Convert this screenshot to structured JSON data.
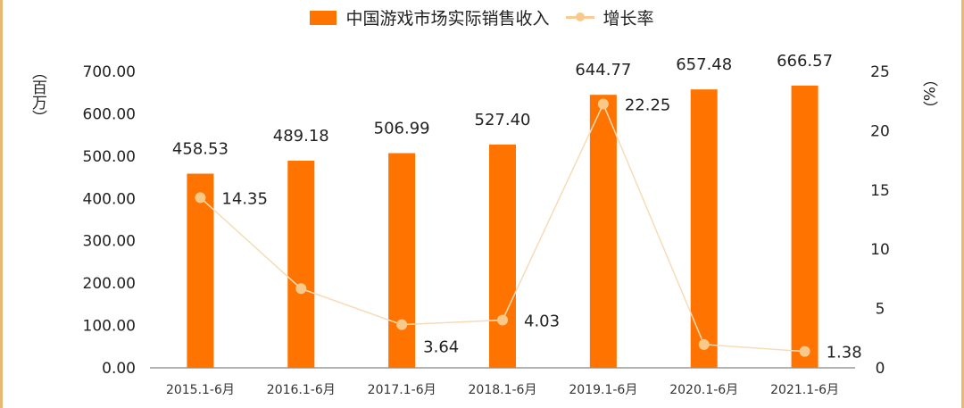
{
  "chart_data": {
    "type": "bar+line",
    "categories": [
      "2015.1-6月",
      "2016.1-6月",
      "2017.1-6月",
      "2018.1-6月",
      "2019.1-6月",
      "2020.1-6月",
      "2021.1-6月"
    ],
    "series": [
      {
        "name": "中国游戏市场实际销售收入",
        "type": "bar",
        "axis": "left",
        "color": "#ff7300",
        "values": [
          458.53,
          489.18,
          506.99,
          527.4,
          644.77,
          657.48,
          666.57
        ],
        "labels": [
          "458.53",
          "489.18",
          "506.99",
          "527.40",
          "644.77",
          "657.48",
          "666.57"
        ]
      },
      {
        "name": "增长率",
        "type": "line",
        "axis": "right",
        "color": "#f9c98a",
        "values": [
          14.35,
          6.68,
          3.64,
          4.03,
          22.25,
          1.97,
          1.38
        ],
        "labels": [
          "14.35",
          "",
          "3.64",
          "4.03",
          "22.25",
          "",
          "1.38"
        ]
      }
    ],
    "left_axis": {
      "label": "（百万）",
      "ylim": [
        0,
        700
      ],
      "ticks": [
        "0.00",
        "100.00",
        "200.00",
        "300.00",
        "400.00",
        "500.00",
        "600.00",
        "700.00"
      ]
    },
    "right_axis": {
      "label": "（%）",
      "ylim": [
        0,
        25
      ],
      "ticks": [
        "0",
        "5",
        "10",
        "15",
        "20",
        "25"
      ]
    },
    "legend": "top-center",
    "grid": false
  }
}
